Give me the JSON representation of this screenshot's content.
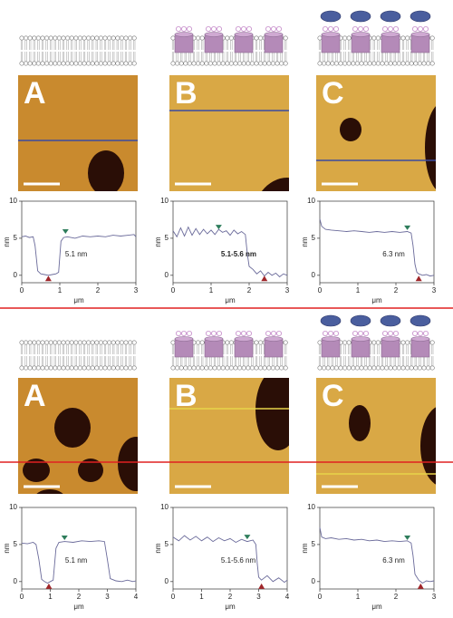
{
  "rows": [
    {
      "panels": [
        {
          "label": "A",
          "profile": {
            "type": "line",
            "annotation": "5.1 nm",
            "x_label": "μm",
            "y_label": "nm",
            "xlim": [
              0,
              3
            ],
            "ylim": [
              -1,
              10
            ],
            "xticks": [
              0,
              1,
              2,
              3
            ],
            "yticks": [
              0,
              5,
              10
            ],
            "color": "#6a6a9a",
            "x": [
              0,
              0.1,
              0.2,
              0.3,
              0.35,
              0.42,
              0.5,
              0.6,
              0.7,
              0.8,
              0.9,
              0.97,
              1.03,
              1.1,
              1.2,
              1.4,
              1.6,
              1.8,
              2.0,
              2.2,
              2.4,
              2.6,
              2.8,
              2.95,
              3
            ],
            "y": [
              5.2,
              5.3,
              5.1,
              5.2,
              4.0,
              0.6,
              0.2,
              0.1,
              0.0,
              0.1,
              0.2,
              0.4,
              4.6,
              5.1,
              5.2,
              5.0,
              5.3,
              5.2,
              5.3,
              5.2,
              5.4,
              5.3,
              5.4,
              5.5,
              5.2
            ],
            "markers": [
              {
                "x": 1.15,
                "y": 5.6,
                "color": "#2e7d5b"
              },
              {
                "x": 0.7,
                "y": -0.3,
                "color": "#a0262a"
              }
            ]
          }
        },
        {
          "label": "B",
          "profile": {
            "type": "line",
            "annotation": "5.1-5.6 nm",
            "x_label": "μm",
            "y_label": "nm",
            "xlim": [
              0,
              3
            ],
            "ylim": [
              -1,
              10
            ],
            "xticks": [
              0,
              1,
              2,
              3
            ],
            "yticks": [
              0,
              5,
              10
            ],
            "color": "#6a6a9a",
            "x": [
              0,
              0.1,
              0.2,
              0.3,
              0.4,
              0.5,
              0.6,
              0.7,
              0.8,
              0.9,
              1.0,
              1.1,
              1.2,
              1.3,
              1.4,
              1.5,
              1.6,
              1.7,
              1.8,
              1.9,
              1.95,
              2.0,
              2.1,
              2.2,
              2.3,
              2.4,
              2.5,
              2.6,
              2.7,
              2.8,
              2.9,
              3
            ],
            "y": [
              6.0,
              5.2,
              6.4,
              5.3,
              6.5,
              5.4,
              6.3,
              5.5,
              6.2,
              5.6,
              6.1,
              5.5,
              6.2,
              5.8,
              6.0,
              5.4,
              6.1,
              5.6,
              5.9,
              5.5,
              3.0,
              1.2,
              0.8,
              0.2,
              0.6,
              -0.1,
              0.4,
              0.0,
              0.3,
              -0.2,
              0.2,
              0.0
            ],
            "markers": [
              {
                "x": 1.2,
                "y": 6.2,
                "color": "#2e7d5b"
              },
              {
                "x": 2.4,
                "y": -0.3,
                "color": "#a0262a"
              }
            ]
          }
        },
        {
          "label": "C",
          "profile": {
            "type": "line",
            "annotation": "6.3 nm",
            "x_label": "μm",
            "y_label": "nm",
            "xlim": [
              0,
              3
            ],
            "ylim": [
              -1,
              10
            ],
            "xticks": [
              0,
              1,
              2,
              3
            ],
            "yticks": [
              0,
              5,
              10
            ],
            "color": "#6a6a9a",
            "x": [
              0,
              0.05,
              0.15,
              0.3,
              0.5,
              0.7,
              0.9,
              1.1,
              1.3,
              1.5,
              1.7,
              1.9,
              2.1,
              2.3,
              2.4,
              2.45,
              2.5,
              2.55,
              2.6,
              2.7,
              2.8,
              2.9,
              3
            ],
            "y": [
              7.6,
              6.6,
              6.2,
              6.1,
              6.0,
              5.9,
              6.0,
              5.9,
              5.8,
              5.9,
              5.8,
              5.9,
              5.8,
              5.9,
              5.7,
              4.0,
              1.5,
              0.4,
              0.2,
              0.0,
              0.1,
              -0.1,
              0.0
            ],
            "markers": [
              {
                "x": 2.3,
                "y": 6.1,
                "color": "#2e7d5b"
              },
              {
                "x": 2.6,
                "y": -0.3,
                "color": "#a0262a"
              }
            ]
          }
        }
      ]
    },
    {
      "panels": [
        {
          "label": "A",
          "profile": {
            "type": "line",
            "annotation": "5.1 nm",
            "x_label": "μm",
            "y_label": "nm",
            "xlim": [
              0,
              4
            ],
            "ylim": [
              -1,
              10
            ],
            "xticks": [
              0,
              1,
              2,
              3,
              4
            ],
            "yticks": [
              0,
              5,
              10
            ],
            "color": "#6a6a9a",
            "x": [
              0,
              0.2,
              0.4,
              0.5,
              0.6,
              0.7,
              0.8,
              0.9,
              1.0,
              1.1,
              1.2,
              1.3,
              1.5,
              1.8,
              2.1,
              2.4,
              2.7,
              2.9,
              3.0,
              3.1,
              3.3,
              3.5,
              3.7,
              3.9,
              4
            ],
            "y": [
              5.2,
              5.1,
              5.3,
              5.0,
              3.0,
              0.3,
              0.0,
              -0.2,
              0.0,
              0.2,
              4.5,
              5.3,
              5.4,
              5.3,
              5.5,
              5.4,
              5.5,
              5.4,
              3.0,
              0.4,
              0.1,
              0.0,
              0.2,
              0.0,
              0.1
            ],
            "markers": [
              {
                "x": 1.5,
                "y": 5.6,
                "color": "#2e7d5b"
              },
              {
                "x": 0.95,
                "y": -0.5,
                "color": "#a0262a"
              }
            ]
          }
        },
        {
          "label": "B",
          "profile": {
            "type": "line",
            "annotation": "5.1-5.6 nm",
            "x_label": "μm",
            "y_label": "nm",
            "xlim": [
              0,
              4
            ],
            "ylim": [
              -1,
              10
            ],
            "xticks": [
              0,
              1,
              2,
              3,
              4
            ],
            "yticks": [
              0,
              5,
              10
            ],
            "color": "#6a6a9a",
            "x": [
              0,
              0.2,
              0.4,
              0.6,
              0.8,
              1.0,
              1.2,
              1.4,
              1.6,
              1.8,
              2.0,
              2.2,
              2.4,
              2.6,
              2.8,
              2.9,
              2.95,
              3.0,
              3.1,
              3.3,
              3.5,
              3.7,
              3.9,
              4
            ],
            "y": [
              6.0,
              5.5,
              6.2,
              5.6,
              6.1,
              5.5,
              6.0,
              5.4,
              5.9,
              5.5,
              5.8,
              5.3,
              5.7,
              5.4,
              5.6,
              5.0,
              2.5,
              0.6,
              0.2,
              0.8,
              0.0,
              0.5,
              -0.1,
              0.2
            ],
            "markers": [
              {
                "x": 2.6,
                "y": 5.7,
                "color": "#2e7d5b"
              },
              {
                "x": 3.1,
                "y": -0.5,
                "color": "#a0262a"
              }
            ]
          }
        },
        {
          "label": "C",
          "profile": {
            "type": "line",
            "annotation": "6.3 nm",
            "x_label": "μm",
            "y_label": "nm",
            "xlim": [
              0,
              3
            ],
            "ylim": [
              -1,
              10
            ],
            "xticks": [
              0,
              1,
              2,
              3
            ],
            "yticks": [
              0,
              5,
              10
            ],
            "color": "#6a6a9a",
            "x": [
              0,
              0.05,
              0.15,
              0.3,
              0.5,
              0.7,
              0.9,
              1.1,
              1.3,
              1.5,
              1.7,
              1.9,
              2.1,
              2.3,
              2.4,
              2.45,
              2.5,
              2.6,
              2.7,
              2.8,
              2.9,
              3
            ],
            "y": [
              7.3,
              6.0,
              5.8,
              5.9,
              5.7,
              5.8,
              5.6,
              5.7,
              5.5,
              5.6,
              5.4,
              5.5,
              5.4,
              5.5,
              5.2,
              3.5,
              1.0,
              0.2,
              -0.2,
              0.1,
              0.0,
              0.1
            ],
            "markers": [
              {
                "x": 2.3,
                "y": 5.6,
                "color": "#2e7d5b"
              },
              {
                "x": 2.65,
                "y": -0.5,
                "color": "#a0262a"
              }
            ]
          }
        }
      ]
    }
  ]
}
